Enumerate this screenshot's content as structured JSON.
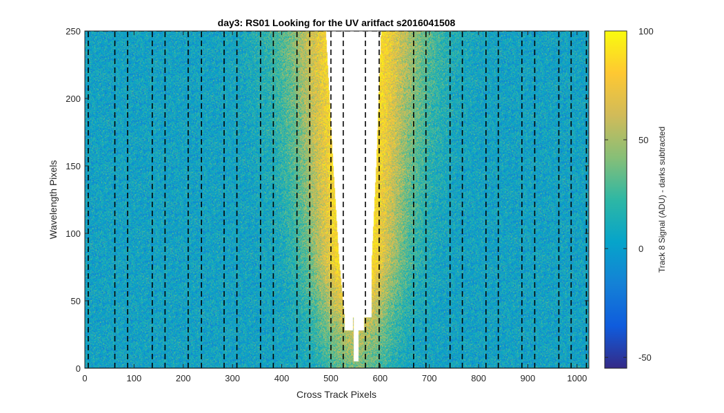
{
  "chart_data": {
    "type": "heatmap",
    "title": "day3: RS01  Looking for the UV aritfact  s2016041508",
    "xlabel": "Cross Track Pixels",
    "ylabel": "Wavelength Pixels",
    "xlim": [
      0,
      1024
    ],
    "ylim": [
      0,
      250
    ],
    "xticks": [
      0,
      100,
      200,
      300,
      400,
      500,
      600,
      700,
      800,
      900,
      1000
    ],
    "yticks": [
      0,
      50,
      100,
      150,
      200,
      250
    ],
    "colorbar": {
      "label": "Track 8 Signal (ADU) - darks subtracted",
      "clim": [
        -55,
        100
      ],
      "ticks": [
        -50,
        0,
        50,
        100
      ],
      "colormap": [
        "#352a87",
        "#0f5cdd",
        "#1481d6",
        "#06a4ca",
        "#2eb7a4",
        "#87bf77",
        "#d1bb59",
        "#fec832",
        "#f9fb0e"
      ]
    },
    "background_signal": 5,
    "saturated_region": {
      "description": "signal above colour limit rendered white",
      "profile": [
        {
          "wavelength": 0,
          "x_min": 551,
          "x_max": 551
        },
        {
          "wavelength": 30,
          "x_min": 547,
          "x_max": 555
        },
        {
          "wavelength": 38,
          "x_min": 528,
          "x_max": 545
        },
        {
          "wavelength": 38,
          "x_min": 556,
          "x_max": 568
        },
        {
          "wavelength": 80,
          "x_min": 517,
          "x_max": 583
        },
        {
          "wavelength": 150,
          "x_min": 505,
          "x_max": 592
        },
        {
          "wavelength": 250,
          "x_min": 490,
          "x_max": 602
        }
      ]
    },
    "dashed_lines_x": [
      7,
      61,
      87,
      137,
      163,
      210,
      237,
      283,
      309,
      357,
      383,
      431,
      457,
      500,
      525,
      570,
      598,
      668,
      693,
      742,
      767,
      815,
      840,
      888,
      914,
      963,
      988,
      1019
    ],
    "dashed_top_y": 250
  }
}
